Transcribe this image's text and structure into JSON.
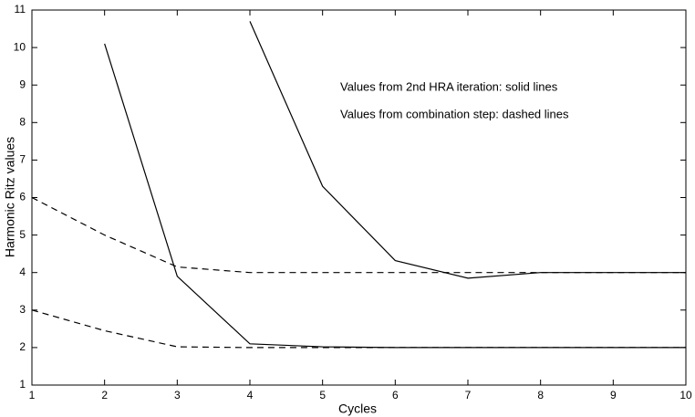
{
  "chart_data": {
    "type": "line",
    "x_label": "Cycles",
    "y_label": "Harmonic Ritz values",
    "annotations": [
      "Values from 2nd HRA iteration: solid lines",
      "Values from combination step: dashed lines"
    ],
    "x": [
      1,
      2,
      3,
      4,
      5,
      6,
      7,
      8,
      9,
      10
    ],
    "series": [
      {
        "color": "#000000",
        "dash": "solid",
        "values": [
          null,
          10.1,
          3.9,
          2.1,
          2.02,
          2.0,
          2.0,
          2.0,
          2.0,
          2.0
        ]
      },
      {
        "color": "#000000",
        "dash": "solid",
        "values": [
          null,
          null,
          null,
          10.7,
          6.3,
          4.32,
          3.85,
          4.0,
          4.0,
          4.0
        ]
      },
      {
        "color": "#000000",
        "dash": "dashed",
        "values": [
          6.0,
          5.0,
          4.15,
          4.0,
          4.0,
          4.0,
          4.0,
          4.0,
          4.0,
          4.0
        ]
      },
      {
        "color": "#000000",
        "dash": "dashed",
        "values": [
          3.0,
          2.45,
          2.02,
          2.0,
          2.0,
          2.0,
          2.0,
          2.0,
          2.0,
          2.0
        ]
      }
    ],
    "xlim": [
      1,
      10
    ],
    "ylim": [
      1,
      11
    ],
    "xticks": [
      1,
      2,
      3,
      4,
      5,
      6,
      7,
      8,
      9,
      10
    ],
    "yticks": [
      1,
      2,
      3,
      4,
      5,
      6,
      7,
      8,
      9,
      10,
      11
    ],
    "grid": false
  }
}
